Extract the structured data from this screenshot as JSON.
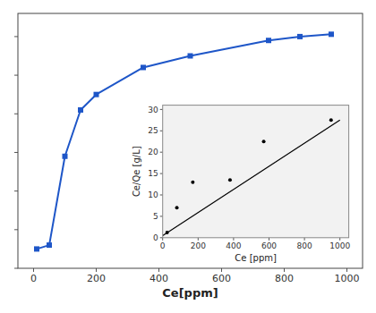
{
  "chart_data": [
    {
      "type": "line",
      "xlabel": "Ce[ppm]",
      "x": [
        10,
        50,
        100,
        150,
        200,
        350,
        500,
        750,
        850,
        950
      ],
      "values": [
        2.5,
        3.0,
        14.5,
        20.5,
        22.5,
        26.0,
        27.5,
        29.5,
        30.0,
        30.3
      ],
      "color": "#1e56c8",
      "marker": "square",
      "line_style": "solid",
      "xlim": [
        -50,
        1050
      ],
      "ylim": [
        0,
        33
      ],
      "xticks": [
        0,
        200,
        400,
        600,
        800,
        1000
      ],
      "yticks": [
        0,
        5,
        10,
        15,
        20,
        25,
        30
      ],
      "tick_labels": "x"
    },
    {
      "type": "scatter",
      "xlabel": "Ce [ppm]",
      "ylabel": "Ce/Qe [g/L]",
      "series": [
        {
          "type": "scatter",
          "color": "black",
          "marker": "dot",
          "x": [
            25,
            80,
            170,
            380,
            570,
            950
          ],
          "values": [
            1.2,
            7.0,
            13.0,
            13.5,
            22.5,
            27.5
          ]
        },
        {
          "type": "line",
          "color": "black",
          "line_style": "solid",
          "x": [
            0,
            1000
          ],
          "values": [
            0.5,
            27.5
          ]
        }
      ],
      "xlim": [
        0,
        1050
      ],
      "ylim": [
        0,
        31
      ],
      "xticks": [
        0,
        200,
        400,
        600,
        800,
        1000
      ],
      "yticks": [
        0,
        5,
        10,
        15,
        20,
        25,
        30
      ]
    }
  ]
}
